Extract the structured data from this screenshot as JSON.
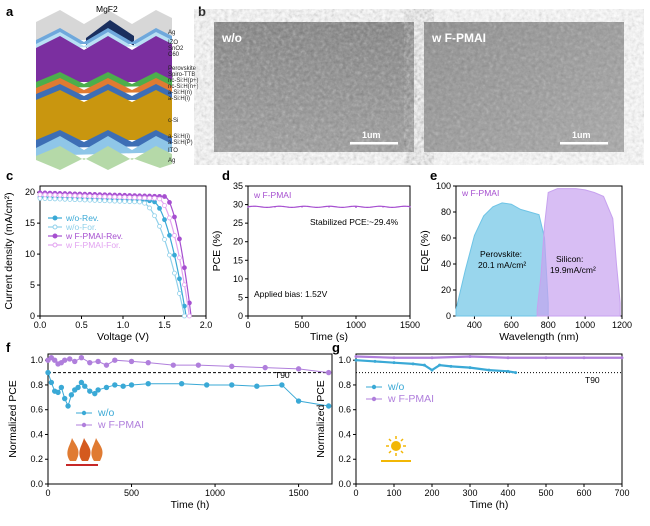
{
  "panels": {
    "a": {
      "label": "a",
      "top_layer": "MgF2",
      "layers": [
        "Ag",
        "IZO",
        "SnO2",
        "C60",
        "Perovskite",
        "Spiro-TTB",
        "nc-Si:H(p+)",
        "nc-Si:H(n+)",
        "a-Si:H(n)",
        "a-Si:H(i)",
        "c-Si",
        "a-Si:H(i)",
        "a-Si:H(P)",
        "ITO",
        "Ag"
      ],
      "colors": {
        "mgf2": "#1a2f5e",
        "ag": "#c9c9c9",
        "izo": "#6fa8dc",
        "perovskite": "#7b2fa0",
        "sto": "#4cae4c",
        "csi": "#c9960f",
        "bottom": "#b5d9a8"
      }
    },
    "b": {
      "label": "b",
      "left_label": "w/o",
      "right_label": "w F-PMAI",
      "scalebar": "1um"
    },
    "c": {
      "label": "c",
      "xlabel": "Voltage (V)",
      "ylabel": "Current density (mA/cm²)"
    },
    "d": {
      "label": "d",
      "xlabel": "Time (s)",
      "ylabel": "PCE (%)",
      "legend": "w F-PMAI",
      "annotation1": "Stabilized PCE:~29.4%",
      "annotation2": "Applied bias: 1.52V"
    },
    "e": {
      "label": "e",
      "xlabel": "Wavelength (nm)",
      "ylabel": "EQE (%)",
      "legend": "w F-PMAI",
      "perovskite_label": "Perovskite:",
      "perovskite_value": "20.1 mA/cm²",
      "silicon_label": "Silicon:",
      "silicon_value": "19.9mA/cm²"
    },
    "f": {
      "label": "f",
      "xlabel": "Time (h)",
      "ylabel": "Normalized PCE",
      "t90": "T90"
    },
    "g": {
      "label": "g",
      "xlabel": "Time (h)",
      "ylabel": "Normalized PCE",
      "t90": "T90"
    }
  },
  "chart_data": [
    {
      "id": "c",
      "type": "line",
      "xlabel": "Voltage (V)",
      "ylabel": "Current density (mA/cm²)",
      "xlim": [
        0,
        2.0
      ],
      "ylim": [
        0,
        21
      ],
      "xticks": [
        "0.0",
        "0.5",
        "1.0",
        "1.5",
        "2.0"
      ],
      "yticks": [
        "0",
        "5",
        "10",
        "15",
        "20"
      ],
      "legend_position": "center-left",
      "series": [
        {
          "name": "w/o-Rev.",
          "color": "#3aa9d6",
          "marker": "circle-filled",
          "Jsc": 19.2,
          "Voc": 1.76,
          "knee": 1.35
        },
        {
          "name": "w/o-For.",
          "color": "#8fd0ea",
          "marker": "circle-open",
          "Jsc": 19.0,
          "Voc": 1.74,
          "knee": 1.22
        },
        {
          "name": "w F-PMAI-Rev.",
          "color": "#a64fd0",
          "marker": "circle-filled",
          "Jsc": 19.9,
          "Voc": 1.82,
          "knee": 1.5
        },
        {
          "name": "w F-PMAI-For.",
          "color": "#e2a3f0",
          "marker": "circle-open",
          "Jsc": 19.6,
          "Voc": 1.8,
          "knee": 1.42
        }
      ]
    },
    {
      "id": "d",
      "type": "line",
      "xlabel": "Time (s)",
      "ylabel": "PCE (%)",
      "xlim": [
        0,
        1500
      ],
      "ylim": [
        0,
        35
      ],
      "xticks": [
        "0",
        "500",
        "1000",
        "1500"
      ],
      "yticks": [
        "0",
        "5",
        "10",
        "15",
        "20",
        "25",
        "30",
        "35"
      ],
      "series": [
        {
          "name": "w F-PMAI",
          "color": "#a64fd0",
          "x": [
            0,
            250,
            500,
            750,
            1000,
            1250,
            1500
          ],
          "y": [
            29.3,
            29.4,
            29.4,
            29.4,
            29.3,
            29.4,
            29.4
          ]
        }
      ]
    },
    {
      "id": "e",
      "type": "area",
      "xlabel": "Wavelength (nm)",
      "ylabel": "EQE (%)",
      "xlim": [
        300,
        1200
      ],
      "ylim": [
        0,
        100
      ],
      "xticks": [
        "400",
        "600",
        "800",
        "1000",
        "1200"
      ],
      "yticks": [
        "0",
        "20",
        "40",
        "60",
        "80",
        "100"
      ],
      "series": [
        {
          "name": "Perovskite",
          "color": "#6ec4e6",
          "x": [
            300,
            350,
            400,
            450,
            500,
            550,
            600,
            650,
            700,
            750,
            780,
            800
          ],
          "y": [
            5,
            35,
            62,
            77,
            84,
            87,
            86,
            82,
            80,
            78,
            60,
            10
          ]
        },
        {
          "name": "Silicon",
          "color": "#c7a2ef",
          "x": [
            740,
            760,
            780,
            800,
            850,
            900,
            950,
            1000,
            1050,
            1100,
            1150,
            1170,
            1190
          ],
          "y": [
            5,
            30,
            70,
            95,
            98,
            98,
            98,
            97,
            95,
            92,
            75,
            40,
            10
          ]
        }
      ]
    },
    {
      "id": "f",
      "type": "line",
      "xlabel": "Time (h)",
      "ylabel": "Normalized PCE",
      "xlim": [
        0,
        1700
      ],
      "ylim": [
        0.0,
        1.05
      ],
      "xticks": [
        "0",
        "500",
        "1000",
        "1500"
      ],
      "yticks": [
        "0.0",
        "0.2",
        "0.4",
        "0.6",
        "0.8",
        "1.0"
      ],
      "t90_level": 0.9,
      "series": [
        {
          "name": "w/o",
          "color": "#3aa9d6",
          "x": [
            0,
            20,
            40,
            60,
            80,
            100,
            120,
            140,
            160,
            180,
            200,
            220,
            250,
            280,
            300,
            350,
            400,
            450,
            500,
            600,
            800,
            950,
            1100,
            1250,
            1400,
            1500,
            1680
          ],
          "y": [
            0.9,
            0.82,
            0.75,
            0.74,
            0.78,
            0.69,
            0.63,
            0.72,
            0.76,
            0.78,
            0.82,
            0.79,
            0.75,
            0.73,
            0.76,
            0.78,
            0.8,
            0.79,
            0.8,
            0.81,
            0.81,
            0.8,
            0.8,
            0.79,
            0.8,
            0.67,
            0.63
          ]
        },
        {
          "name": "w F-PMAI",
          "color": "#b07fdc",
          "x": [
            0,
            20,
            40,
            60,
            80,
            100,
            130,
            160,
            200,
            250,
            300,
            350,
            400,
            500,
            600,
            750,
            900,
            1100,
            1300,
            1500,
            1680
          ],
          "y": [
            1.0,
            1.02,
            1.0,
            0.97,
            0.98,
            1.0,
            1.01,
            0.99,
            1.02,
            0.98,
            0.99,
            0.96,
            1.0,
            0.99,
            0.98,
            0.96,
            0.96,
            0.95,
            0.94,
            0.93,
            0.9
          ]
        }
      ]
    },
    {
      "id": "g",
      "type": "line",
      "xlabel": "Time (h)",
      "ylabel": "Normalized PCE",
      "xlim": [
        0,
        700
      ],
      "ylim": [
        0.0,
        1.05
      ],
      "xticks": [
        "0",
        "100",
        "200",
        "300",
        "400",
        "500",
        "600",
        "700"
      ],
      "yticks": [
        "0.0",
        "0.2",
        "0.4",
        "0.6",
        "0.8",
        "1.0"
      ],
      "t90_level": 0.9,
      "series": [
        {
          "name": "w/o",
          "color": "#3aa9d6",
          "x": [
            0,
            50,
            100,
            150,
            180,
            200,
            220,
            250,
            300,
            350,
            400,
            420
          ],
          "y": [
            1.0,
            0.99,
            0.98,
            0.97,
            0.96,
            0.92,
            0.96,
            0.95,
            0.94,
            0.92,
            0.91,
            0.9
          ]
        },
        {
          "name": "w F-PMAI",
          "color": "#b07fdc",
          "x": [
            0,
            100,
            200,
            300,
            400,
            500,
            600,
            700
          ],
          "y": [
            1.03,
            1.02,
            1.02,
            1.03,
            1.02,
            1.02,
            1.02,
            1.02
          ]
        }
      ]
    }
  ]
}
